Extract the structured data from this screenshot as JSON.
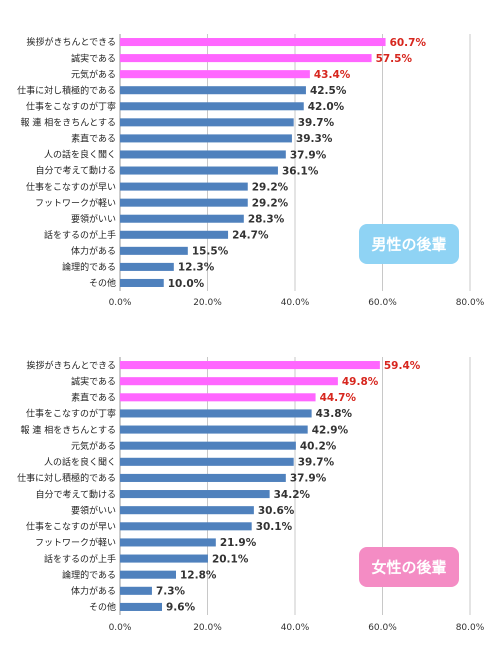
{
  "colors": {
    "highlight_bar": "#ff66ff",
    "normal_bar": "#4f81bd",
    "highlight_value": "#d7261e",
    "normal_value": "#333333",
    "grid": "#c8c8c8",
    "male_badge": "#8fd3f4",
    "female_badge": "#f48cc4"
  },
  "chart_data": [
    {
      "type": "bar",
      "orientation": "horizontal",
      "badge": "男性の後輩",
      "xlim": [
        0,
        80
      ],
      "x_ticks": [
        "0.0%",
        "20.0%",
        "40.0%",
        "60.0%",
        "80.0%"
      ],
      "grid": true,
      "categories": [
        "挨拶がきちんとできる",
        "誠実である",
        "元気がある",
        "仕事に対し積極的である",
        "仕事をこなすのが丁寧",
        "報 連 相をきちんとする",
        "素直である",
        "人の話を良く聞く",
        "自分で考えて動ける",
        "仕事をこなすのが早い",
        "フットワークが軽い",
        "要領がいい",
        "話をするのが上手",
        "体力がある",
        "論理的である",
        "その他"
      ],
      "values": [
        60.7,
        57.5,
        43.4,
        42.5,
        42.0,
        39.7,
        39.3,
        37.9,
        36.1,
        29.2,
        29.2,
        28.3,
        24.7,
        15.5,
        12.3,
        10.0
      ],
      "value_labels": [
        "60.7%",
        "57.5%",
        "43.4%",
        "42.5%",
        "42.0%",
        "39.7%",
        "39.3%",
        "37.9%",
        "36.1%",
        "29.2%",
        "29.2%",
        "28.3%",
        "24.7%",
        "15.5%",
        "12.3%",
        "10.0%"
      ],
      "highlighted": [
        true,
        true,
        true,
        false,
        false,
        false,
        false,
        false,
        false,
        false,
        false,
        false,
        false,
        false,
        false,
        false
      ]
    },
    {
      "type": "bar",
      "orientation": "horizontal",
      "badge": "女性の後輩",
      "xlim": [
        0,
        80
      ],
      "x_ticks": [
        "0.0%",
        "20.0%",
        "40.0%",
        "60.0%",
        "80.0%"
      ],
      "grid": true,
      "categories": [
        "挨拶がきちんとできる",
        "誠実である",
        "素直である",
        "仕事をこなすのが丁寧",
        "報 連 相をきちんとする",
        "元気がある",
        "人の話を良く聞く",
        "仕事に対し積極的である",
        "自分で考えて動ける",
        "要領がいい",
        "仕事をこなすのが早い",
        "フットワークが軽い",
        "話をするのが上手",
        "論理的である",
        "体力がある",
        "その他"
      ],
      "values": [
        59.4,
        49.8,
        44.7,
        43.8,
        42.9,
        40.2,
        39.7,
        37.9,
        34.2,
        30.6,
        30.1,
        21.9,
        20.1,
        12.8,
        7.3,
        9.6
      ],
      "value_labels": [
        "59.4%",
        "49.8%",
        "44.7%",
        "43.8%",
        "42.9%",
        "40.2%",
        "39.7%",
        "37.9%",
        "34.2%",
        "30.6%",
        "30.1%",
        "21.9%",
        "20.1%",
        "12.8%",
        "7.3%",
        "9.6%"
      ],
      "highlighted": [
        true,
        true,
        true,
        false,
        false,
        false,
        false,
        false,
        false,
        false,
        false,
        false,
        false,
        false,
        false,
        false
      ]
    }
  ]
}
